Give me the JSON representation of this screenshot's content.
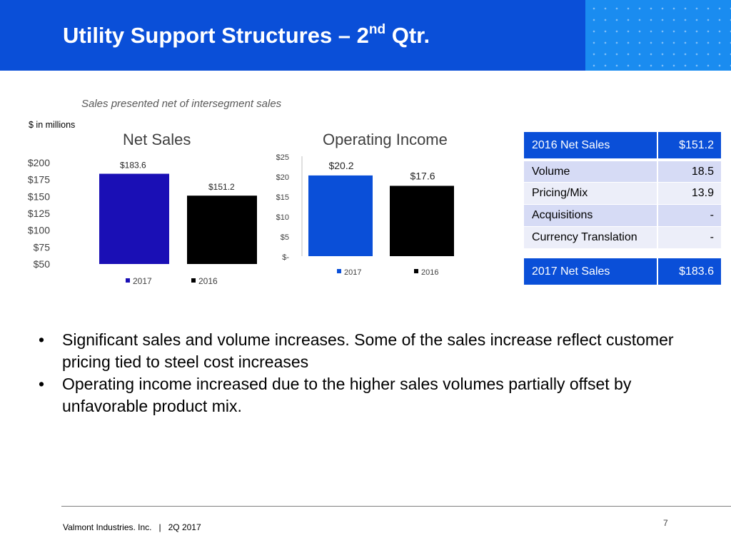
{
  "header": {
    "title_main": "Utility Support Structures – 2",
    "title_sup": "nd",
    "title_tail": " Qtr."
  },
  "subtitle": "Sales presented net of intersegment sales",
  "units_note": "$ in millions",
  "colors": {
    "header_blue": "#0a4fd8",
    "pattern_blue": "#1a8cf0",
    "bar_2017_net_sales": "#1a0fb5",
    "bar_2017_op_income": "#0a4fd8",
    "bar_2016": "#000000"
  },
  "chart_data": [
    {
      "type": "bar",
      "title": "Net Sales",
      "categories": [
        "2017",
        "2016"
      ],
      "values": [
        183.6,
        151.2
      ],
      "data_labels": [
        "$183.6",
        "$151.2"
      ],
      "y_ticks": [
        "$200",
        "$175",
        "$150",
        "$125",
        "$100",
        "$75",
        "$50"
      ],
      "ylim": [
        50,
        200
      ],
      "legend": [
        "2017",
        "2016"
      ],
      "legend_position": "bottom",
      "grid": false
    },
    {
      "type": "bar",
      "title": "Operating Income",
      "categories": [
        "2017",
        "2016"
      ],
      "values": [
        20.2,
        17.6
      ],
      "data_labels": [
        "$20.2",
        "$17.6"
      ],
      "y_ticks": [
        "$25",
        "$20",
        "$15",
        "$10",
        "$5",
        "$-"
      ],
      "ylim": [
        0,
        25
      ],
      "legend": [
        "2017",
        "2016"
      ],
      "legend_position": "bottom",
      "grid": false
    }
  ],
  "bridge_table": {
    "rows": [
      {
        "label": "2016 Net Sales",
        "value": "$151.2"
      },
      {
        "label": "Volume",
        "value": "18.5"
      },
      {
        "label": "Pricing/Mix",
        "value": "13.9"
      },
      {
        "label": "Acquisitions",
        "value": "-"
      },
      {
        "label": "Currency Translation",
        "value": "-"
      },
      {
        "label": "2017 Net Sales",
        "value": "$183.6"
      }
    ]
  },
  "bullets": [
    "Significant sales and volume increases. Some of the sales increase reflect customer pricing tied to steel cost increases",
    "Operating income increased due to the higher sales volumes partially offset by unfavorable product mix."
  ],
  "bullet_char": "•",
  "footer": {
    "company": "Valmont Industries. Inc.   |   2Q 2017",
    "page_number": "7"
  }
}
